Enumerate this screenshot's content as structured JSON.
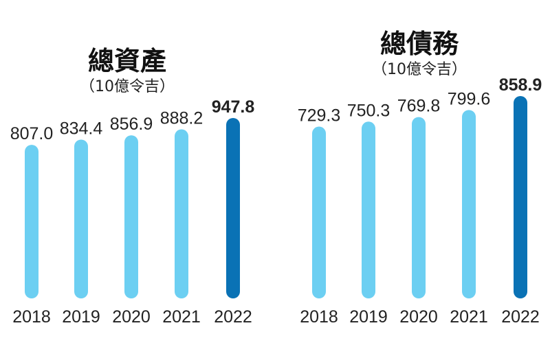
{
  "chart_data": [
    {
      "type": "bar",
      "title": "總資產",
      "subtitle": "（10億令吉）",
      "categories": [
        "2018",
        "2019",
        "2020",
        "2021",
        "2022"
      ],
      "values": [
        807.0,
        834.4,
        856.9,
        888.2,
        947.8
      ],
      "value_labels": [
        "807.0",
        "834.4",
        "856.9",
        "888.2",
        "947.8"
      ],
      "highlight_index": 4,
      "colors": {
        "bar": "#6ccff2",
        "highlight": "#0a72b5",
        "text": "#222222"
      },
      "ylim": [
        0,
        1000
      ]
    },
    {
      "type": "bar",
      "title": "總債務",
      "subtitle": "（10億令吉）",
      "categories": [
        "2018",
        "2019",
        "2020",
        "2021",
        "2022"
      ],
      "values": [
        729.3,
        750.3,
        769.8,
        799.6,
        858.9
      ],
      "value_labels": [
        "729.3",
        "750.3",
        "769.8",
        "799.6",
        "858.9"
      ],
      "highlight_index": 4,
      "colors": {
        "bar": "#6ccff2",
        "highlight": "#0a72b5",
        "text": "#222222"
      },
      "ylim": [
        0,
        900
      ]
    }
  ]
}
